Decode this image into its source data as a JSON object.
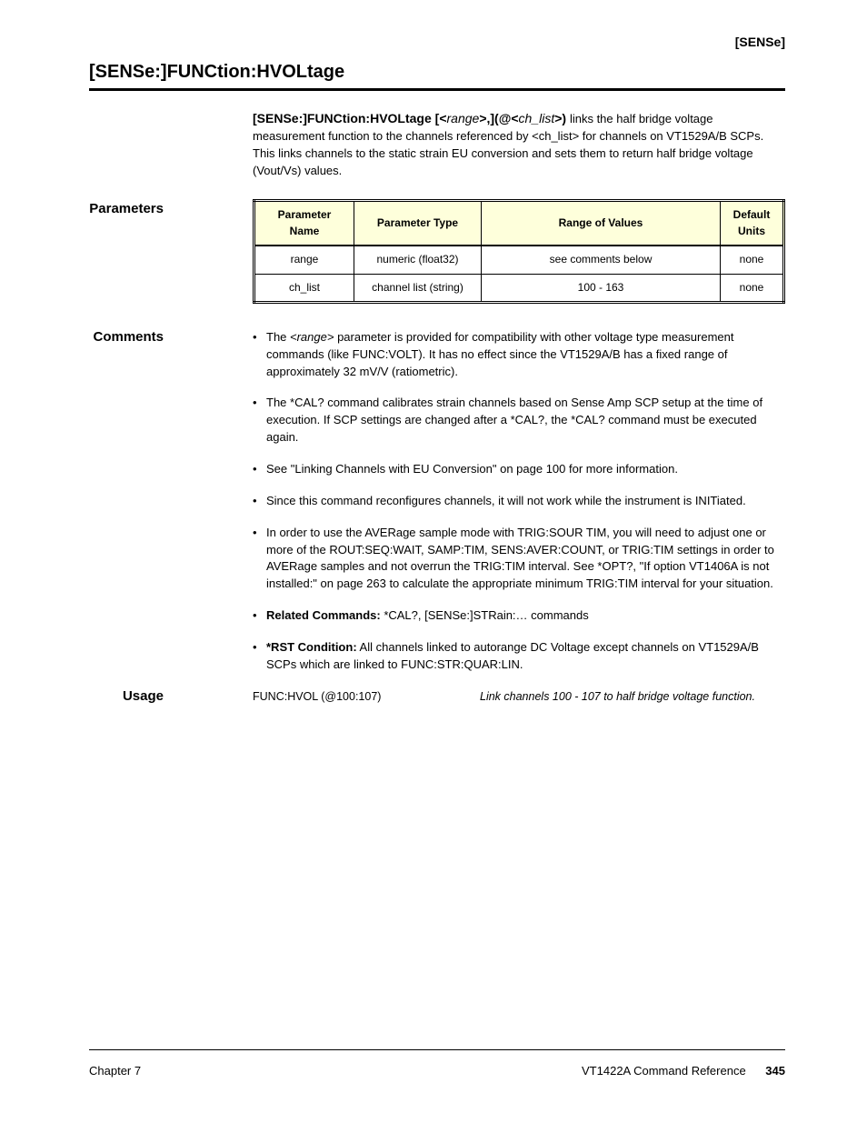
{
  "top_right_tag": "[SENSe]",
  "section_title": "[SENSe:]FUNCtion:HVOLtage",
  "syntax": {
    "prefix": "[SENSe:]FUNCtion:HVOLtage [<",
    "p1": "range",
    "mid": ">,](@<",
    "p2": "ch_list",
    "suffix": ">) ",
    "tail": "links the half bridge voltage measurement function to the channels referenced by <ch_list> for channels on VT1529A/B SCPs. This links channels to the static strain EU conversion and sets them to return half bridge voltage (Vout/Vs) values."
  },
  "side_headings": {
    "parameters": "Parameters",
    "comments": "Comments",
    "usage": "Usage"
  },
  "params_table": {
    "headers": [
      "Parameter Name",
      "Parameter Type",
      "Range of Values",
      "Default Units"
    ],
    "rows": [
      [
        "range",
        "numeric (float32)",
        "see comments below",
        "none"
      ],
      [
        "ch_list",
        "channel list (string)",
        "100 - 163",
        "none"
      ]
    ],
    "col_widths": [
      "110px",
      "140px",
      "auto",
      "70px"
    ],
    "header_bg": "#feffdb",
    "border_color": "#000000"
  },
  "comments": [
    {
      "html": "The <i>&lt;range&gt;</i> parameter is provided for compatibility with other voltage type measurement commands (like FUNC:VOLT). It has no effect since the VT1529A/B has a fixed range of approximately 32 mV/V (ratiometric)."
    },
    {
      "html": "The *CAL? command calibrates strain channels based on Sense Amp SCP setup at the time of execution. If SCP settings are changed after a *CAL?, the *CAL? command must be executed again."
    },
    {
      "html": "See \"Linking Channels with EU Conversion\" on page 100 for more information."
    },
    {
      "html": "Since this command reconfigures channels, it will not work while the instrument is INITiated."
    },
    {
      "html": "In order to use the AVERage sample mode with TRIG:SOUR TIM, you will need to adjust one or more of the ROUT:SEQ:WAIT, SAMP:TIM, SENS:AVER:COUNT, or TRIG:TIM settings in order to AVERage samples and not overrun the TRIG:TIM interval. See *OPT?, \"If option VT1406A is not installed:\" on page 263 to calculate the appropriate minimum TRIG:TIM interval for your situation."
    },
    {
      "html": "<b>Related Commands:</b> *CAL?, [SENSe:]STRain:… commands"
    },
    {
      "html": "<b>*RST Condition:</b> All channels linked to autorange DC Voltage except channels on VT1529A/B SCPs which are linked to FUNC:STR:QUAR:LIN."
    }
  ],
  "usage_rows": [
    {
      "cmd": "FUNC:HVOL (@100:107)",
      "expl": "Link channels 100 - 107 to half bridge voltage function."
    }
  ],
  "footer": {
    "left": "Chapter 7",
    "right_label": "VT1422A Command Reference",
    "page_number": "345"
  }
}
